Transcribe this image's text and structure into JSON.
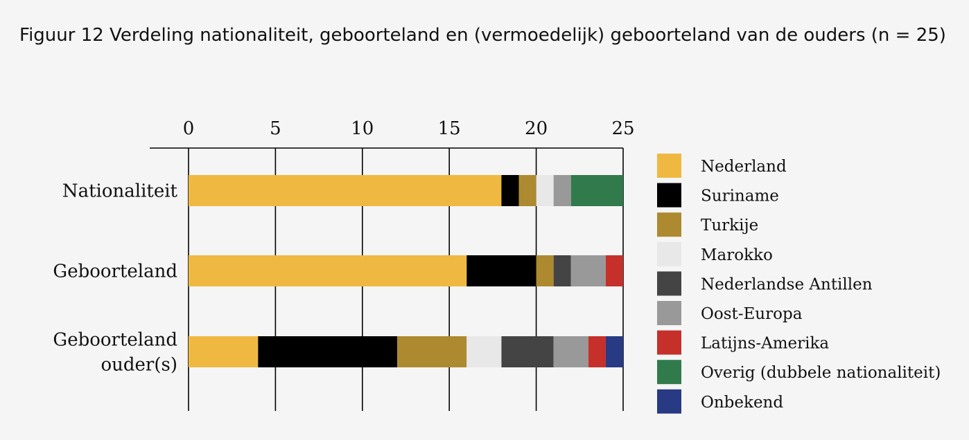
{
  "chart_data": {
    "type": "bar",
    "orientation": "horizontal",
    "stacked": true,
    "title": "Figuur 12 Verdeling nationaliteit, geboorteland en (vermoedelijk) geboorteland van de ouders (n = 25)",
    "xlim": [
      0,
      25
    ],
    "xticks": [
      0,
      5,
      10,
      15,
      20,
      25
    ],
    "grid": true,
    "legend_position": "right",
    "categories": [
      [
        "Nationaliteit"
      ],
      [
        "Geboorteland"
      ],
      [
        "Geboorteland",
        "ouder(s)"
      ]
    ],
    "series": [
      {
        "name": "Nederland",
        "color": "#efb941",
        "values": [
          18,
          16,
          4
        ]
      },
      {
        "name": "Suriname",
        "color": "#000000",
        "values": [
          1,
          4,
          8
        ]
      },
      {
        "name": "Turkije",
        "color": "#ad8a30",
        "values": [
          1,
          1,
          4
        ]
      },
      {
        "name": "Marokko",
        "color": "#e8e8e8",
        "values": [
          1,
          0,
          2
        ]
      },
      {
        "name": "Nederlandse Antillen",
        "color": "#444444",
        "values": [
          0,
          1,
          3
        ]
      },
      {
        "name": "Oost-Europa",
        "color": "#999999",
        "values": [
          1,
          2,
          2
        ]
      },
      {
        "name": "Latijns-Amerika",
        "color": "#c5302b",
        "values": [
          0,
          1,
          1
        ]
      },
      {
        "name": "Overig (dubbele nationaliteit)",
        "color": "#317a4c",
        "values": [
          3,
          0,
          0
        ]
      },
      {
        "name": "Onbekend",
        "color": "#283a84",
        "values": [
          0,
          0,
          1
        ]
      }
    ]
  }
}
